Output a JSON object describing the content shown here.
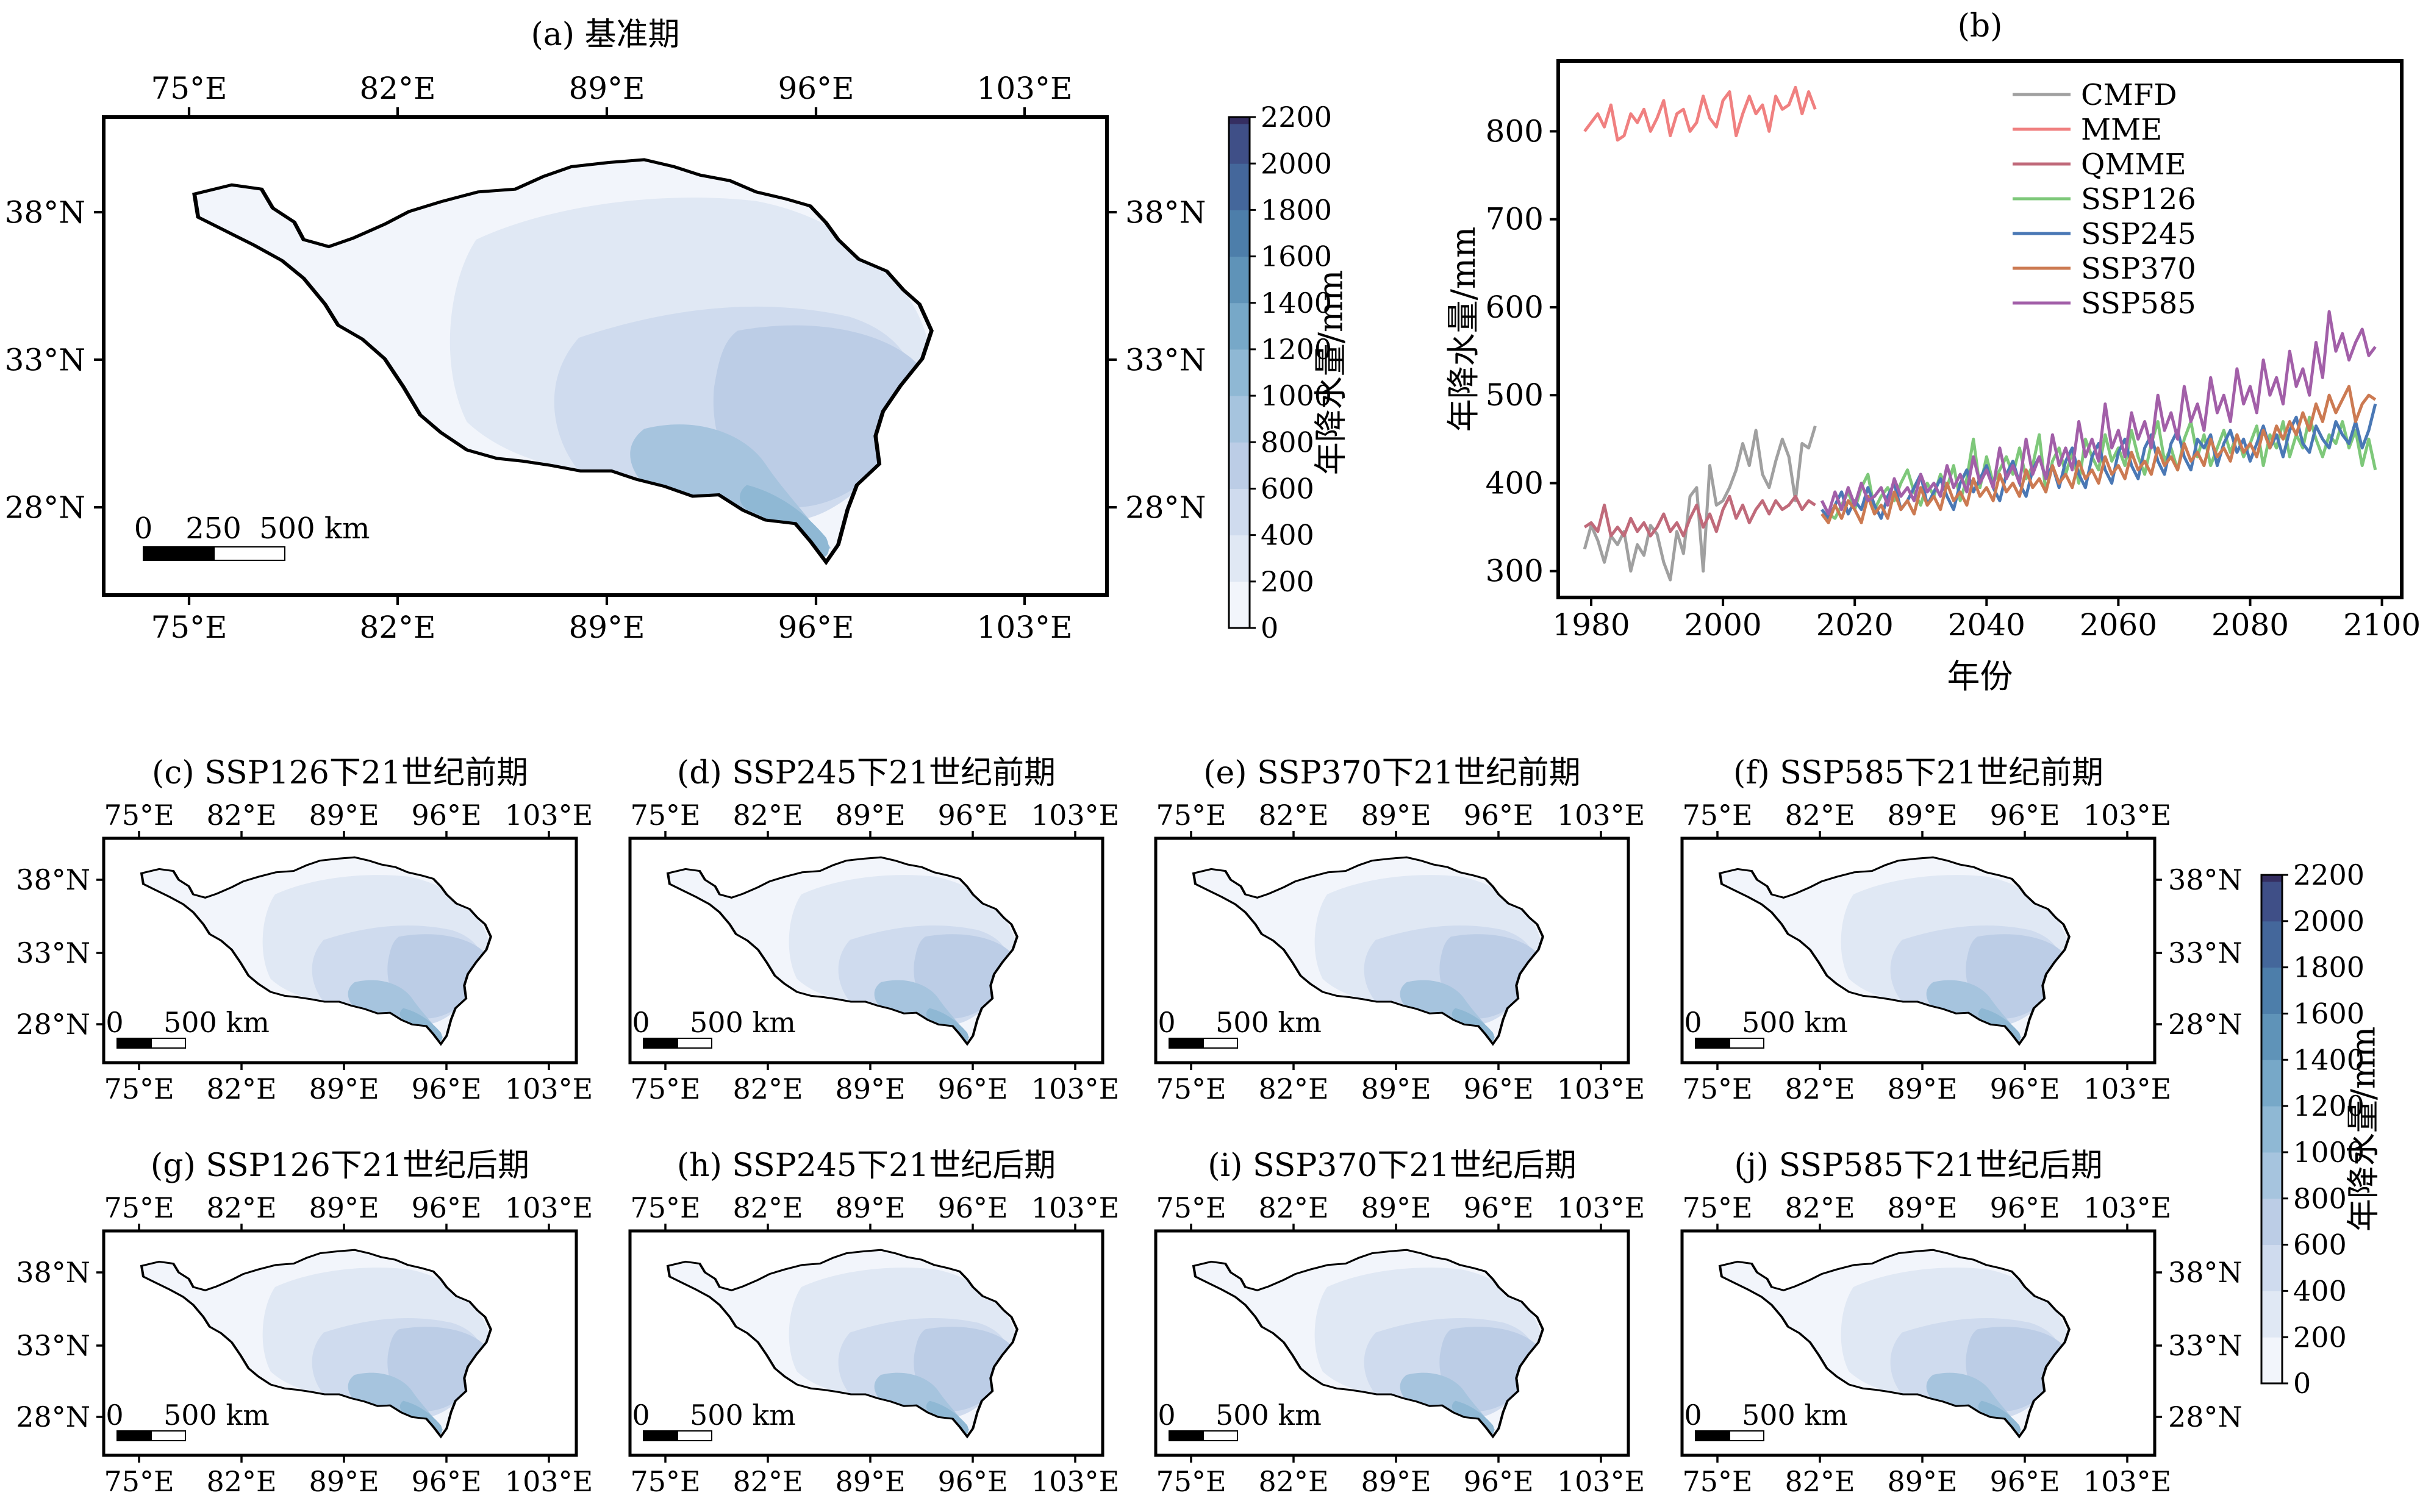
{
  "lon_ticks": [
    "75°E",
    "82°E",
    "89°E",
    "96°E",
    "103°E"
  ],
  "lat_ticks": [
    "38°N",
    "33°N",
    "28°N"
  ],
  "colorbar": {
    "label": "年降水量/mm",
    "ticks": [
      "0",
      "200",
      "400",
      "600",
      "800",
      "1000",
      "1200",
      "1400",
      "1600",
      "1800",
      "2000",
      "2200"
    ],
    "colors": [
      "#f2f5fb",
      "#e0e8f4",
      "#cfdbee",
      "#bccde6",
      "#a6c4de",
      "#8fb8d4",
      "#77a8c8",
      "#5f93b8",
      "#4d7eaa",
      "#44679b",
      "#3f4f87",
      "#352e61"
    ]
  },
  "panel_a": {
    "title": "(a) 基准期",
    "scalebar": {
      "zero": "0",
      "mid": "250",
      "end": "500 km"
    }
  },
  "small_scalebar": {
    "zero": "0",
    "end": "500 km"
  },
  "small_panels": [
    {
      "title": "(c) SSP126下21世纪前期"
    },
    {
      "title": "(d) SSP245下21世纪前期"
    },
    {
      "title": "(e) SSP370下21世纪前期"
    },
    {
      "title": "(f) SSP585下21世纪前期"
    },
    {
      "title": "(g) SSP126下21世纪后期"
    },
    {
      "title": "(h) SSP245下21世纪后期"
    },
    {
      "title": "(i) SSP370下21世纪后期"
    },
    {
      "title": "(j) SSP585下21世纪后期"
    }
  ],
  "chart_data": {
    "type": "line",
    "title": "(b)",
    "xlabel": "年份",
    "ylabel": "年降水量/mm",
    "xlim": [
      1975,
      2103
    ],
    "ylim": [
      270,
      880
    ],
    "xticks": [
      1980,
      2000,
      2020,
      2040,
      2060,
      2080,
      2100
    ],
    "yticks": [
      300,
      400,
      500,
      600,
      700,
      800
    ],
    "legend_position": "top-center",
    "series": [
      {
        "name": "CMFD",
        "color": "#a0a0a0",
        "x_start": 1979,
        "values": [
          325,
          352,
          335,
          310,
          340,
          330,
          345,
          300,
          330,
          318,
          352,
          342,
          310,
          290,
          345,
          320,
          385,
          395,
          300,
          420,
          375,
          380,
          395,
          415,
          445,
          420,
          460,
          410,
          395,
          425,
          450,
          430,
          380,
          445,
          440,
          465
        ]
      },
      {
        "name": "MME",
        "color": "#f08080",
        "x_start": 1979,
        "values": [
          800,
          810,
          820,
          805,
          830,
          790,
          795,
          820,
          810,
          825,
          800,
          815,
          835,
          795,
          820,
          825,
          800,
          810,
          840,
          815,
          805,
          835,
          845,
          795,
          820,
          840,
          820,
          830,
          800,
          840,
          825,
          830,
          850,
          820,
          845,
          825
        ]
      },
      {
        "name": "QMME",
        "color": "#c06a7a",
        "x_start": 1979,
        "values": [
          350,
          355,
          345,
          375,
          340,
          350,
          340,
          360,
          345,
          355,
          340,
          350,
          365,
          345,
          355,
          340,
          360,
          375,
          350,
          365,
          345,
          370,
          385,
          360,
          375,
          355,
          370,
          380,
          365,
          380,
          370,
          375,
          385,
          370,
          380,
          375
        ]
      },
      {
        "name": "SSP126",
        "color": "#7ec87a",
        "x_start": 2015,
        "values": [
          380,
          365,
          360,
          375,
          390,
          370,
          395,
          410,
          370,
          385,
          395,
          380,
          400,
          415,
          390,
          375,
          400,
          385,
          410,
          395,
          420,
          380,
          405,
          450,
          395,
          430,
          400,
          415,
          430,
          410,
          440,
          405,
          420,
          455,
          390,
          425,
          440,
          410,
          435,
          400,
          450,
          430,
          415,
          455,
          425,
          440,
          420,
          460,
          430,
          410,
          445,
          470,
          425,
          440,
          415,
          450,
          470,
          430,
          455,
          420,
          440,
          460,
          435,
          455,
          430,
          445,
          465,
          420,
          455,
          440,
          470,
          430,
          455,
          440,
          475,
          450,
          430,
          455,
          445,
          470,
          440,
          460,
          420,
          450,
          415
        ]
      },
      {
        "name": "SSP245",
        "color": "#4a78b5",
        "x_start": 2015,
        "values": [
          370,
          360,
          375,
          390,
          365,
          380,
          370,
          395,
          375,
          360,
          385,
          400,
          370,
          380,
          395,
          410,
          375,
          390,
          405,
          385,
          370,
          400,
          415,
          390,
          405,
          420,
          395,
          380,
          410,
          425,
          400,
          385,
          415,
          430,
          405,
          420,
          395,
          425,
          440,
          410,
          395,
          430,
          445,
          415,
          400,
          435,
          450,
          420,
          405,
          440,
          455,
          425,
          410,
          445,
          460,
          430,
          415,
          450,
          440,
          455,
          420,
          445,
          460,
          435,
          450,
          425,
          445,
          465,
          440,
          455,
          430,
          460,
          475,
          445,
          435,
          465,
          450,
          440,
          470,
          455,
          445,
          470,
          440,
          460,
          490
        ]
      },
      {
        "name": "SSP370",
        "color": "#cc7a52",
        "x_start": 2015,
        "values": [
          365,
          355,
          375,
          360,
          380,
          370,
          355,
          385,
          365,
          375,
          360,
          390,
          370,
          380,
          365,
          395,
          375,
          385,
          370,
          400,
          380,
          390,
          375,
          405,
          385,
          395,
          380,
          410,
          390,
          400,
          385,
          415,
          395,
          405,
          390,
          420,
          400,
          410,
          395,
          425,
          405,
          415,
          400,
          430,
          410,
          420,
          405,
          435,
          415,
          425,
          410,
          440,
          420,
          430,
          415,
          445,
          425,
          435,
          420,
          450,
          430,
          440,
          425,
          455,
          435,
          445,
          430,
          460,
          440,
          465,
          450,
          470,
          455,
          480,
          460,
          490,
          470,
          500,
          480,
          495,
          510,
          470,
          490,
          500,
          495
        ]
      },
      {
        "name": "SSP585",
        "color": "#a25fa8",
        "x_start": 2015,
        "values": [
          380,
          365,
          390,
          370,
          395,
          375,
          400,
          380,
          385,
          395,
          375,
          405,
          385,
          395,
          380,
          410,
          390,
          400,
          385,
          420,
          395,
          410,
          390,
          430,
          400,
          415,
          395,
          440,
          405,
          420,
          400,
          450,
          410,
          430,
          405,
          455,
          420,
          440,
          415,
          470,
          430,
          450,
          425,
          490,
          440,
          460,
          430,
          480,
          450,
          470,
          440,
          500,
          460,
          480,
          450,
          510,
          470,
          490,
          460,
          520,
          480,
          500,
          470,
          530,
          490,
          510,
          480,
          540,
          500,
          520,
          490,
          550,
          510,
          530,
          500,
          560,
          520,
          595,
          550,
          570,
          540,
          560,
          575,
          545,
          555
        ]
      }
    ]
  }
}
